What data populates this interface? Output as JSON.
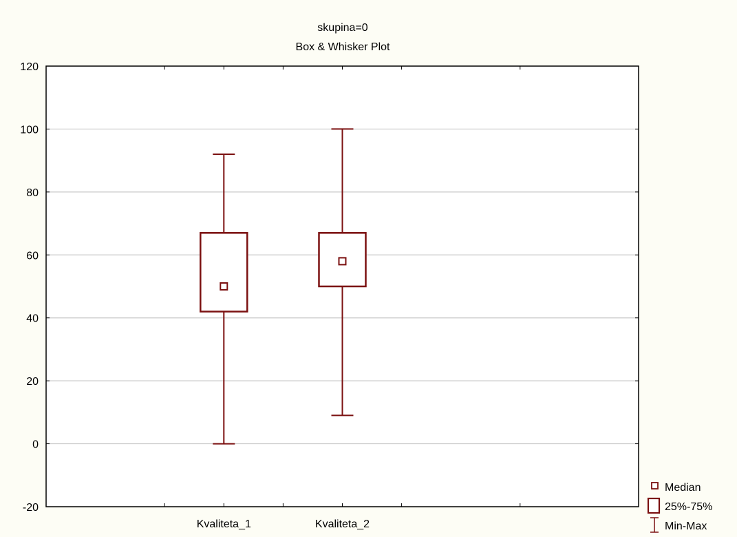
{
  "chart_data": {
    "type": "box",
    "title": "skupina=0",
    "subtitle": "Box & Whisker Plot",
    "xlabel": "",
    "ylabel": "",
    "ylim": [
      -20,
      120
    ],
    "yticks": [
      -20,
      0,
      20,
      40,
      60,
      80,
      100,
      120
    ],
    "categories": [
      "Kvaliteta_1",
      "Kvaliteta_2"
    ],
    "x_slots": 5,
    "x_slot_of_category": [
      1.5,
      2.5
    ],
    "series": [
      {
        "name": "Kvaliteta_1",
        "min": 0,
        "q1": 42,
        "median": 50,
        "q3": 67,
        "max": 92
      },
      {
        "name": "Kvaliteta_2",
        "min": 9,
        "q1": 50,
        "median": 58,
        "q3": 67,
        "max": 100
      }
    ],
    "legend": {
      "position": "bottom-right",
      "items": [
        {
          "symbol": "median-square",
          "label": "Median"
        },
        {
          "symbol": "box",
          "label": "25%-75%"
        },
        {
          "symbol": "whisker",
          "label": "Min-Max"
        }
      ]
    },
    "grid": true,
    "colors": {
      "mark": "#7b1010",
      "grid": "#c8c8c8",
      "plot_bg": "#ffffff",
      "page_bg": "#fdfdf5"
    }
  }
}
